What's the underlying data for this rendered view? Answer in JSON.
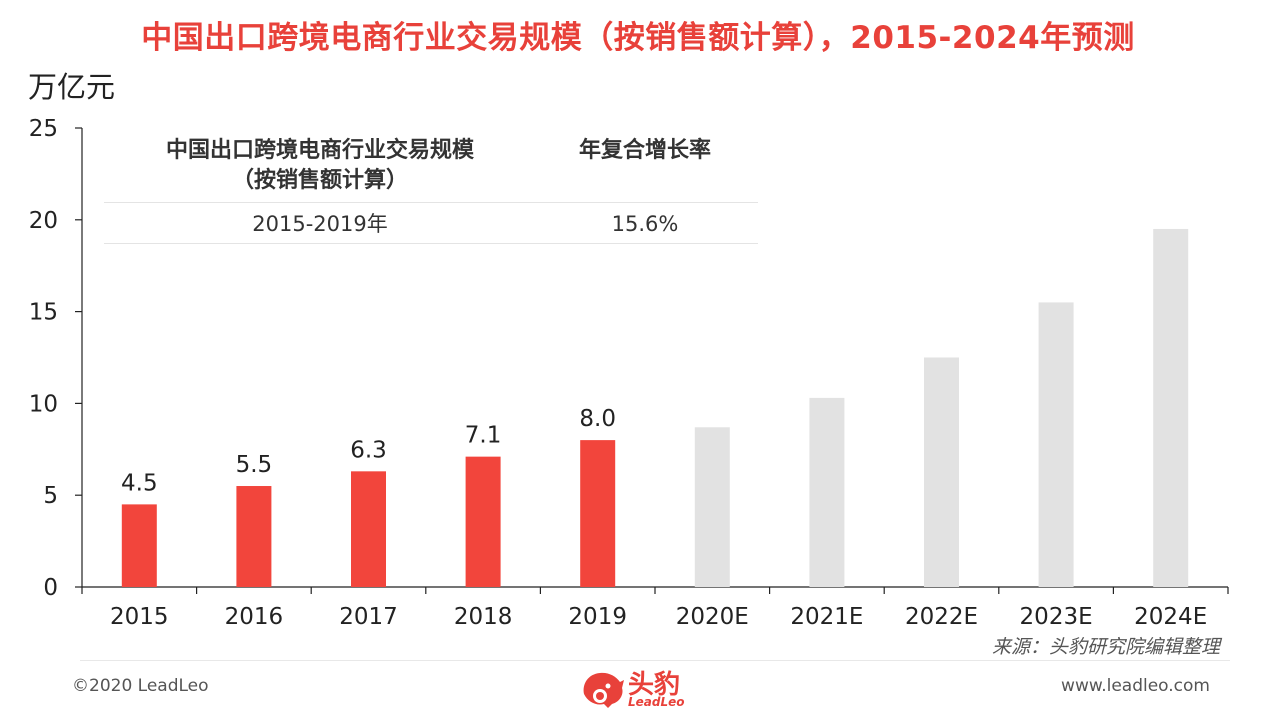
{
  "title": "中国出口跨境电商行业交易规模（按销售额计算），2015-2024年预测",
  "unit": "万亿元",
  "table": {
    "header_left_line1": "中国出口跨境电商行业交易规模",
    "header_left_line2": "（按销售额计算）",
    "header_right": "年复合增长率",
    "row_period": "2015-2019年",
    "row_cagr": "15.6%"
  },
  "chart_data": {
    "type": "bar",
    "categories": [
      "2015",
      "2016",
      "2017",
      "2018",
      "2019",
      "2020E",
      "2021E",
      "2022E",
      "2023E",
      "2024E"
    ],
    "values": [
      4.5,
      5.5,
      6.3,
      7.1,
      8.0,
      8.7,
      10.3,
      12.5,
      15.5,
      19.5
    ],
    "data_labels": [
      "4.5",
      "5.5",
      "6.3",
      "7.1",
      "8.0",
      "",
      "",
      "",
      "",
      ""
    ],
    "yticks": [
      "0",
      "5",
      "10",
      "15",
      "20",
      "25"
    ],
    "ylim": [
      0,
      25
    ],
    "colors": {
      "actual": "#f2453c",
      "forecast": "#e2e2e2"
    },
    "forecast_from_index": 5,
    "grid": false
  },
  "source": "来源：头豹研究院编辑整理",
  "footer": {
    "copyright": "©2020 LeadLeo",
    "website": "www.leadleo.com",
    "logo_cn": "头豹",
    "logo_en": "LeadLeo"
  },
  "accent_color": "#e8413a"
}
